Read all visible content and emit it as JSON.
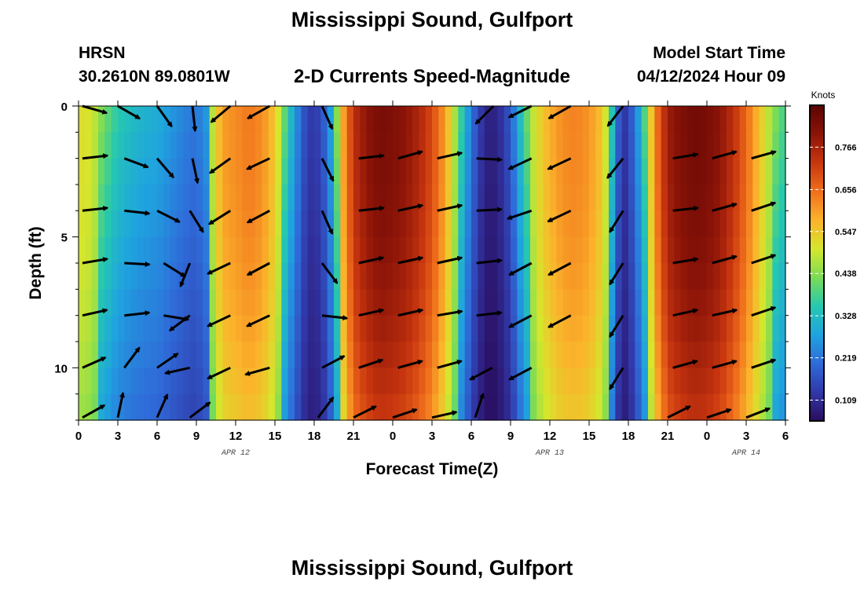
{
  "header": {
    "title": "Mississippi Sound, Gulfport",
    "station": "HRSN",
    "coords": "30.2610N  89.0801W",
    "subtitle": "2-D Currents Speed-Magnitude",
    "model_label": "Model Start Time",
    "model_time": "04/12/2024 Hour 09",
    "bottom_title": "Mississippi Sound, Gulfport"
  },
  "chart_data": {
    "type": "heatmap",
    "title": "2-D Currents Speed-Magnitude",
    "xlabel": "Forecast Time(Z)",
    "ylabel": "Depth (ft)",
    "x_range_hours": [
      0,
      54
    ],
    "y_range_ft": [
      0,
      12
    ],
    "x_tick_labels": [
      "0",
      "3",
      "6",
      "9",
      "12",
      "15",
      "18",
      "21",
      "0",
      "3",
      "6",
      "9",
      "12",
      "15",
      "18",
      "21",
      "0",
      "3",
      "6"
    ],
    "y_tick_labels": [
      "0",
      "5",
      "10"
    ],
    "y_tick_values": [
      0,
      5,
      10
    ],
    "date_labels": [
      {
        "text": "APR 12",
        "hour": 12
      },
      {
        "text": "APR 13",
        "hour": 36
      },
      {
        "text": "APR 14",
        "hour": 51
      }
    ],
    "colorbar": {
      "unit": "Knots",
      "ticks": [
        0.109,
        0.219,
        0.328,
        0.438,
        0.547,
        0.656,
        0.766
      ],
      "tick_labels": [
        "0.109",
        "0.219",
        "0.328",
        "0.438",
        "0.547",
        "0.656",
        "0.766"
      ],
      "range": [
        0.055,
        0.875
      ],
      "colors": [
        "#2a0c5e",
        "#3138a8",
        "#2f6bd9",
        "#1fa3df",
        "#25c8b0",
        "#7bdc55",
        "#d6e62c",
        "#fbb32b",
        "#f06e1c",
        "#c8360f",
        "#8c1408",
        "#5a0404"
      ]
    },
    "speed_profile_hours": [
      0,
      1,
      2,
      3,
      4,
      5,
      6,
      7,
      8,
      9,
      9.8,
      10.3,
      11,
      12,
      13,
      14,
      15,
      16,
      17,
      17.5,
      18,
      18.5,
      19,
      19.5,
      20,
      21,
      22,
      23,
      24,
      25,
      26,
      27,
      28,
      29,
      30,
      31,
      31.5,
      32,
      33,
      34,
      35,
      36,
      37,
      38,
      39,
      40,
      40.5,
      41,
      41.5,
      42,
      43,
      44,
      45,
      46,
      47,
      48,
      49,
      50,
      51,
      52,
      53,
      54
    ],
    "speed_profile_knots": [
      0.52,
      0.5,
      0.42,
      0.36,
      0.33,
      0.31,
      0.3,
      0.27,
      0.24,
      0.22,
      0.27,
      0.5,
      0.6,
      0.62,
      0.64,
      0.62,
      0.55,
      0.36,
      0.2,
      0.14,
      0.13,
      0.16,
      0.22,
      0.34,
      0.55,
      0.74,
      0.8,
      0.83,
      0.82,
      0.8,
      0.76,
      0.7,
      0.6,
      0.42,
      0.22,
      0.1,
      0.09,
      0.1,
      0.18,
      0.38,
      0.52,
      0.58,
      0.62,
      0.63,
      0.61,
      0.55,
      0.45,
      0.25,
      0.12,
      0.14,
      0.32,
      0.62,
      0.78,
      0.82,
      0.84,
      0.83,
      0.8,
      0.74,
      0.66,
      0.56,
      0.45,
      0.38
    ],
    "vectors": [
      {
        "hour": 0.3,
        "depth": 0,
        "u": 0.35,
        "v": -0.1
      },
      {
        "hour": 3.0,
        "depth": 0,
        "u": 0.7,
        "v": -0.4
      },
      {
        "hour": 6.0,
        "depth": 0,
        "u": 0.5,
        "v": -0.7
      },
      {
        "hour": 8.7,
        "depth": 0,
        "u": 0.1,
        "v": -0.9
      },
      {
        "hour": 11.6,
        "depth": 0,
        "u": -0.6,
        "v": -0.5
      },
      {
        "hour": 14.6,
        "depth": 0,
        "u": -0.8,
        "v": -0.45
      },
      {
        "hour": 18.6,
        "depth": 0,
        "u": 0.4,
        "v": -0.9
      },
      {
        "hour": 31.7,
        "depth": 0,
        "u": -0.3,
        "v": -0.3
      },
      {
        "hour": 34.6,
        "depth": 0,
        "u": -0.8,
        "v": -0.4
      },
      {
        "hour": 37.6,
        "depth": 0,
        "u": -0.8,
        "v": -0.45
      },
      {
        "hour": 41.6,
        "depth": 0,
        "u": -0.5,
        "v": -0.65
      },
      {
        "hour": 0.3,
        "depth": 2,
        "u": 0.9,
        "v": 0.1
      },
      {
        "hour": 3.5,
        "depth": 2,
        "u": 0.8,
        "v": -0.3
      },
      {
        "hour": 6.0,
        "depth": 2,
        "u": 0.6,
        "v": -0.7
      },
      {
        "hour": 8.7,
        "depth": 2,
        "u": 0.2,
        "v": -0.95
      },
      {
        "hour": 11.6,
        "depth": 2,
        "u": -0.7,
        "v": -0.5
      },
      {
        "hour": 14.6,
        "depth": 2,
        "u": -0.85,
        "v": -0.4
      },
      {
        "hour": 18.6,
        "depth": 2,
        "u": 0.45,
        "v": -0.9
      },
      {
        "hour": 21.4,
        "depth": 2,
        "u": 0.9,
        "v": 0.1
      },
      {
        "hour": 24.4,
        "depth": 2,
        "u": 0.9,
        "v": 0.25
      },
      {
        "hour": 27.4,
        "depth": 2,
        "u": 0.9,
        "v": 0.2
      },
      {
        "hour": 30.4,
        "depth": 2,
        "u": 0.9,
        "v": -0.05
      },
      {
        "hour": 34.6,
        "depth": 2,
        "u": -0.85,
        "v": -0.4
      },
      {
        "hour": 37.6,
        "depth": 2,
        "u": -0.85,
        "v": -0.4
      },
      {
        "hour": 41.6,
        "depth": 2,
        "u": -0.6,
        "v": -0.75
      },
      {
        "hour": 45.4,
        "depth": 2,
        "u": 0.9,
        "v": 0.15
      },
      {
        "hour": 48.4,
        "depth": 2,
        "u": 0.9,
        "v": 0.25
      },
      {
        "hour": 51.4,
        "depth": 2,
        "u": 0.9,
        "v": 0.25
      },
      {
        "hour": 0.3,
        "depth": 4,
        "u": 0.9,
        "v": 0.1
      },
      {
        "hour": 3.5,
        "depth": 4,
        "u": 0.9,
        "v": -0.1
      },
      {
        "hour": 6.0,
        "depth": 4,
        "u": 0.8,
        "v": -0.4
      },
      {
        "hour": 8.5,
        "depth": 4,
        "u": 0.5,
        "v": -0.8
      },
      {
        "hour": 11.6,
        "depth": 4,
        "u": -0.8,
        "v": -0.5
      },
      {
        "hour": 14.6,
        "depth": 4,
        "u": -0.85,
        "v": -0.45
      },
      {
        "hour": 18.6,
        "depth": 4,
        "u": 0.4,
        "v": -0.9
      },
      {
        "hour": 21.4,
        "depth": 4,
        "u": 0.9,
        "v": 0.1
      },
      {
        "hour": 24.4,
        "depth": 4,
        "u": 0.9,
        "v": 0.2
      },
      {
        "hour": 27.4,
        "depth": 4,
        "u": 0.9,
        "v": 0.2
      },
      {
        "hour": 30.4,
        "depth": 4,
        "u": 0.9,
        "v": 0.05
      },
      {
        "hour": 34.6,
        "depth": 4,
        "u": -0.9,
        "v": -0.3
      },
      {
        "hour": 37.6,
        "depth": 4,
        "u": -0.85,
        "v": -0.4
      },
      {
        "hour": 41.6,
        "depth": 4,
        "u": -0.5,
        "v": -0.8
      },
      {
        "hour": 45.4,
        "depth": 4,
        "u": 0.9,
        "v": 0.1
      },
      {
        "hour": 48.4,
        "depth": 4,
        "u": 0.9,
        "v": 0.25
      },
      {
        "hour": 51.4,
        "depth": 4,
        "u": 0.9,
        "v": 0.3
      },
      {
        "hour": 0.3,
        "depth": 6,
        "u": 0.9,
        "v": 0.15
      },
      {
        "hour": 3.5,
        "depth": 6,
        "u": 0.9,
        "v": -0.05
      },
      {
        "hour": 6.5,
        "depth": 6,
        "u": 0.8,
        "v": -0.5
      },
      {
        "hour": 8.5,
        "depth": 6,
        "u": -0.2,
        "v": -0.5
      },
      {
        "hour": 11.6,
        "depth": 6,
        "u": -0.85,
        "v": -0.4
      },
      {
        "hour": 14.6,
        "depth": 6,
        "u": -0.85,
        "v": -0.45
      },
      {
        "hour": 18.6,
        "depth": 6,
        "u": 0.6,
        "v": -0.8
      },
      {
        "hour": 21.4,
        "depth": 6,
        "u": 0.9,
        "v": 0.2
      },
      {
        "hour": 24.4,
        "depth": 6,
        "u": 0.9,
        "v": 0.2
      },
      {
        "hour": 27.4,
        "depth": 6,
        "u": 0.9,
        "v": 0.2
      },
      {
        "hour": 30.4,
        "depth": 6,
        "u": 0.9,
        "v": 0.1
      },
      {
        "hour": 34.6,
        "depth": 6,
        "u": -0.85,
        "v": -0.45
      },
      {
        "hour": 37.6,
        "depth": 6,
        "u": -0.85,
        "v": -0.45
      },
      {
        "hour": 41.6,
        "depth": 6,
        "u": -0.5,
        "v": -0.8
      },
      {
        "hour": 45.4,
        "depth": 6,
        "u": 0.9,
        "v": 0.15
      },
      {
        "hour": 48.4,
        "depth": 6,
        "u": 0.9,
        "v": 0.25
      },
      {
        "hour": 51.4,
        "depth": 6,
        "u": 0.9,
        "v": 0.3
      },
      {
        "hour": 0.3,
        "depth": 8,
        "u": 0.9,
        "v": 0.2
      },
      {
        "hour": 3.5,
        "depth": 8,
        "u": 0.9,
        "v": 0.1
      },
      {
        "hour": 6.5,
        "depth": 8,
        "u": 0.9,
        "v": -0.15
      },
      {
        "hour": 8.5,
        "depth": 8,
        "u": -0.4,
        "v": -0.3
      },
      {
        "hour": 11.6,
        "depth": 8,
        "u": -0.85,
        "v": -0.4
      },
      {
        "hour": 14.6,
        "depth": 8,
        "u": -0.85,
        "v": -0.4
      },
      {
        "hour": 18.6,
        "depth": 8,
        "u": 0.9,
        "v": -0.1
      },
      {
        "hour": 21.4,
        "depth": 8,
        "u": 0.9,
        "v": 0.2
      },
      {
        "hour": 24.4,
        "depth": 8,
        "u": 0.9,
        "v": 0.2
      },
      {
        "hour": 27.4,
        "depth": 8,
        "u": 0.9,
        "v": 0.15
      },
      {
        "hour": 30.4,
        "depth": 8,
        "u": 0.9,
        "v": 0.1
      },
      {
        "hour": 34.6,
        "depth": 8,
        "u": -0.85,
        "v": -0.45
      },
      {
        "hour": 37.6,
        "depth": 8,
        "u": -0.85,
        "v": -0.45
      },
      {
        "hour": 41.6,
        "depth": 8,
        "u": -0.5,
        "v": -0.8
      },
      {
        "hour": 45.4,
        "depth": 8,
        "u": 0.9,
        "v": 0.2
      },
      {
        "hour": 48.4,
        "depth": 8,
        "u": 0.9,
        "v": 0.2
      },
      {
        "hour": 51.4,
        "depth": 8,
        "u": 0.9,
        "v": 0.3
      },
      {
        "hour": 0.3,
        "depth": 10,
        "u": 0.9,
        "v": 0.4
      },
      {
        "hour": 3.5,
        "depth": 10,
        "u": 0.6,
        "v": 0.8
      },
      {
        "hour": 6.0,
        "depth": 10,
        "u": 0.8,
        "v": 0.55
      },
      {
        "hour": 8.5,
        "depth": 10,
        "u": -0.9,
        "v": -0.2
      },
      {
        "hour": 11.6,
        "depth": 10,
        "u": -0.85,
        "v": -0.4
      },
      {
        "hour": 14.6,
        "depth": 10,
        "u": -0.9,
        "v": -0.25
      },
      {
        "hour": 18.6,
        "depth": 10,
        "u": 0.85,
        "v": 0.45
      },
      {
        "hour": 21.4,
        "depth": 10,
        "u": 0.9,
        "v": 0.3
      },
      {
        "hour": 24.4,
        "depth": 10,
        "u": 0.9,
        "v": 0.25
      },
      {
        "hour": 27.4,
        "depth": 10,
        "u": 0.9,
        "v": 0.25
      },
      {
        "hour": 31.6,
        "depth": 10,
        "u": -0.85,
        "v": -0.45
      },
      {
        "hour": 34.6,
        "depth": 10,
        "u": -0.85,
        "v": -0.45
      },
      {
        "hour": 41.6,
        "depth": 10,
        "u": -0.5,
        "v": -0.8
      },
      {
        "hour": 45.4,
        "depth": 10,
        "u": 0.9,
        "v": 0.25
      },
      {
        "hour": 48.4,
        "depth": 10,
        "u": 0.9,
        "v": 0.25
      },
      {
        "hour": 51.4,
        "depth": 10,
        "u": 0.9,
        "v": 0.3
      },
      {
        "hour": 0.3,
        "depth": 11.9,
        "u": 0.9,
        "v": 0.5
      },
      {
        "hour": 3.0,
        "depth": 11.9,
        "u": 0.2,
        "v": 0.95
      },
      {
        "hour": 6.0,
        "depth": 11.9,
        "u": 0.4,
        "v": 0.9
      },
      {
        "hour": 8.5,
        "depth": 11.9,
        "u": 0.8,
        "v": 0.6
      },
      {
        "hour": 18.3,
        "depth": 11.9,
        "u": 0.6,
        "v": 0.8
      },
      {
        "hour": 21.0,
        "depth": 11.9,
        "u": 0.9,
        "v": 0.45
      },
      {
        "hour": 24.0,
        "depth": 11.9,
        "u": 0.9,
        "v": 0.3
      },
      {
        "hour": 27.0,
        "depth": 11.9,
        "u": 0.9,
        "v": 0.2
      },
      {
        "hour": 30.3,
        "depth": 11.9,
        "u": 0.3,
        "v": 0.9
      },
      {
        "hour": 45.0,
        "depth": 11.9,
        "u": 0.9,
        "v": 0.45
      },
      {
        "hour": 48.0,
        "depth": 11.9,
        "u": 0.9,
        "v": 0.3
      },
      {
        "hour": 51.0,
        "depth": 11.9,
        "u": 0.9,
        "v": 0.35
      }
    ]
  }
}
